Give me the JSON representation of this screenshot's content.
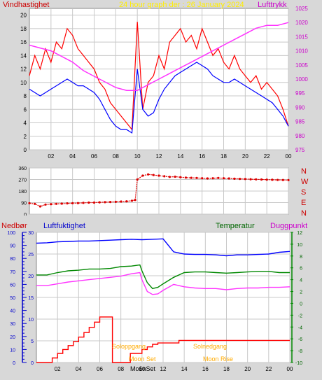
{
  "header": {
    "left_label": "Vindhastighet",
    "title": "24 hour graph der : 26 January 2024",
    "right_label": "Lufttrykk"
  },
  "colors": {
    "panel_bg": "#d8d8d8",
    "plot_bg": "#ffffff",
    "grid": "#c8c8c8",
    "speed": "#ff0000",
    "avg_speed": "#0000ff",
    "pressure": "#ff33ff",
    "direction": "#dd0000",
    "humidity": "#0000ff",
    "temperature": "#008800",
    "dewpoint": "#ff33ff",
    "rain": "#ff0000",
    "title": "#ffee00",
    "sun": "#ffaa00",
    "green_axis": "#008800"
  },
  "bottom_labels": {
    "rain": "Nedbør",
    "humidity": "Luftfuktighet",
    "temperature": "Temperatur",
    "dewpoint": "Duggpunkt",
    "sunrise": "Soloppgang",
    "sunset": "Solnedgang",
    "moonset": "Moon Set",
    "moonrise": "Moon Rise",
    "sunrise_axis": "Mo6nSet"
  },
  "chart_data": [
    {
      "type": "line",
      "title": "24 hour graph der : 26 January 2024",
      "ylabel_left": "Vindhastighet",
      "ylabel_right": "Lufttrykk",
      "xlim": [
        0,
        24
      ],
      "x_ticks": [
        "02",
        "04",
        "06",
        "08",
        "10",
        "12",
        "14",
        "16",
        "18",
        "20",
        "22",
        "00"
      ],
      "ylim_left": [
        0,
        21
      ],
      "y_ticks_left": [
        "0",
        "2",
        "4",
        "6",
        "8",
        "10",
        "12",
        "14",
        "16",
        "18",
        "20"
      ],
      "ylim_right": [
        975,
        1025
      ],
      "y_ticks_right": [
        "975",
        "980",
        "985",
        "990",
        "995",
        "1000",
        "1005",
        "1010",
        "1015",
        "1020",
        "1025"
      ],
      "grid": true,
      "series": [
        {
          "name": "Vindhastighet",
          "axis": "left",
          "x": [
            0,
            0.5,
            1,
            1.5,
            2,
            2.5,
            3,
            3.5,
            4,
            4.5,
            5,
            5.5,
            6,
            6.5,
            7,
            7.5,
            8,
            8.5,
            9,
            9.5,
            10,
            10.5,
            11,
            11.5,
            12,
            12.5,
            13,
            13.5,
            14,
            14.5,
            15,
            15.5,
            16,
            16.5,
            17,
            17.5,
            18,
            18.5,
            19,
            19.5,
            20,
            20.5,
            21,
            21.5,
            22,
            22.5,
            23,
            23.5,
            24
          ],
          "y": [
            11,
            14,
            12,
            15,
            13,
            16,
            15,
            18,
            17,
            15,
            14,
            13,
            12,
            10,
            9,
            7,
            6,
            5,
            4,
            3,
            19,
            6,
            10,
            11,
            14,
            12,
            16,
            17,
            18,
            16,
            17,
            15,
            18,
            16,
            14,
            15,
            13,
            12,
            14,
            12,
            11,
            10,
            11,
            9,
            10,
            9,
            8,
            6,
            3.5
          ]
        },
        {
          "name": "Middelvind",
          "axis": "left",
          "x": [
            0,
            0.5,
            1,
            1.5,
            2,
            2.5,
            3,
            3.5,
            4,
            4.5,
            5,
            5.5,
            6,
            6.5,
            7,
            7.5,
            8,
            8.5,
            9,
            9.5,
            10,
            10.5,
            11,
            11.5,
            12,
            12.5,
            13,
            13.5,
            14,
            14.5,
            15,
            15.5,
            16,
            16.5,
            17,
            17.5,
            18,
            18.5,
            19,
            19.5,
            20,
            20.5,
            21,
            21.5,
            22,
            22.5,
            23,
            23.5,
            24
          ],
          "y": [
            9,
            8.5,
            8,
            8.5,
            9,
            9.5,
            10,
            10.5,
            10,
            9.5,
            9.5,
            9,
            8.5,
            7.5,
            6,
            4.5,
            3.5,
            3,
            3,
            2.5,
            12,
            6,
            5,
            5.5,
            7.5,
            9,
            10,
            11,
            11.5,
            12,
            12.5,
            13,
            12.5,
            12,
            11,
            10.5,
            10,
            10,
            10.5,
            10,
            9.5,
            9,
            8.5,
            8,
            7.5,
            7,
            6,
            5,
            3.5
          ]
        },
        {
          "name": "Lufttrykk",
          "axis": "right",
          "x": [
            0,
            1,
            2,
            3,
            4,
            5,
            6,
            7,
            8,
            9,
            10,
            11,
            12,
            13,
            14,
            15,
            16,
            17,
            18,
            19,
            20,
            21,
            22,
            23,
            24
          ],
          "y": [
            1012,
            1011,
            1010,
            1008,
            1006,
            1003,
            1001,
            999,
            997,
            996,
            996,
            998,
            1000,
            1002,
            1004,
            1006,
            1008,
            1010,
            1012,
            1014,
            1016,
            1018,
            1019,
            1019,
            1020
          ]
        }
      ]
    },
    {
      "type": "scatter",
      "xlim": [
        0,
        24
      ],
      "x_ticks": [
        "02",
        "04",
        "06",
        "08",
        "10",
        "12",
        "14",
        "16",
        "18",
        "20",
        "22",
        "00"
      ],
      "ylim": [
        0,
        360
      ],
      "y_ticks": [
        "0",
        "90",
        "180",
        "270",
        "360"
      ],
      "right_labels": [
        "N",
        "W",
        "S",
        "E",
        "N"
      ],
      "series": [
        {
          "name": "Vindretning",
          "x": [
            0,
            0.5,
            1,
            1.5,
            2,
            2.5,
            3,
            3.5,
            4,
            4.5,
            5,
            5.5,
            6,
            6.5,
            7,
            7.5,
            8,
            8.5,
            9,
            9.5,
            9.8,
            10,
            10.5,
            11,
            11.5,
            12,
            12.5,
            13,
            13.5,
            14,
            14.5,
            15,
            15.5,
            16,
            16.5,
            17,
            17.5,
            18,
            18.5,
            19,
            19.5,
            20,
            20.5,
            21,
            21.5,
            22,
            22.5,
            23,
            23.5,
            24
          ],
          "y": [
            85,
            80,
            60,
            75,
            78,
            80,
            82,
            84,
            85,
            86,
            88,
            90,
            90,
            92,
            93,
            95,
            96,
            98,
            100,
            105,
            110,
            270,
            300,
            310,
            305,
            300,
            295,
            290,
            292,
            288,
            285,
            283,
            282,
            280,
            278,
            280,
            282,
            280,
            278,
            276,
            275,
            274,
            272,
            271,
            270,
            269,
            268,
            267,
            266,
            265
          ]
        }
      ]
    },
    {
      "type": "line",
      "xlim": [
        0,
        24
      ],
      "x_ticks": [
        "02",
        "04",
        "06",
        "08",
        "10",
        "12",
        "14",
        "16",
        "18",
        "20",
        "22",
        "00"
      ],
      "rain_ylim": [
        0,
        100
      ],
      "rain_ticks": [
        "0",
        "10",
        "20",
        "30",
        "40",
        "50",
        "60",
        "70",
        "80",
        "90",
        "100"
      ],
      "humidity_ylim": [
        0,
        30
      ],
      "humidity_ticks": [
        "0",
        "5",
        "10",
        "15",
        "20",
        "25",
        "30"
      ],
      "temp_ylim": [
        -10,
        12
      ],
      "temp_ticks": [
        "-10",
        "-8",
        "-6",
        "-4",
        "-2",
        "0",
        "2",
        "4",
        "6",
        "8",
        "10",
        "12"
      ],
      "series": [
        {
          "name": "Luftfuktighet",
          "axis": "humidity",
          "x": [
            0,
            1,
            2,
            3,
            4,
            5,
            6,
            7,
            8,
            9,
            10,
            11,
            12,
            12.5,
            13,
            14,
            15,
            16,
            17,
            18,
            19,
            20,
            21,
            22,
            23,
            24
          ],
          "y": [
            27.5,
            27.6,
            27.8,
            27.9,
            28,
            28,
            28.1,
            28.2,
            28.3,
            28.4,
            28.3,
            28.4,
            28.5,
            27,
            25.5,
            25,
            24.9,
            24.9,
            24.8,
            24.6,
            24.8,
            24.8,
            24.9,
            25,
            25.4,
            25.6
          ]
        },
        {
          "name": "Temperatur",
          "axis": "temp",
          "x": [
            0,
            1,
            2,
            3,
            4,
            5,
            6,
            7,
            8,
            9,
            9.8,
            10,
            10.5,
            11,
            11.5,
            12,
            13,
            14,
            15,
            16,
            17,
            18,
            19,
            20,
            21,
            22,
            23,
            24
          ],
          "y": [
            4.8,
            4.8,
            5.2,
            5.5,
            5.6,
            5.8,
            5.8,
            5.9,
            6.2,
            6.3,
            6.5,
            5.5,
            3.5,
            2.5,
            2.7,
            3.3,
            4.4,
            5.2,
            5.3,
            5.3,
            5.2,
            5.1,
            5.2,
            5.3,
            5.4,
            5.4,
            5.2,
            5.2
          ]
        },
        {
          "name": "Duggpunkt",
          "axis": "temp",
          "x": [
            0,
            1,
            2,
            3,
            4,
            5,
            6,
            7,
            8,
            9,
            9.8,
            10,
            10.5,
            11,
            11.5,
            12,
            13,
            14,
            15,
            16,
            17,
            18,
            19,
            20,
            21,
            22,
            23,
            24
          ],
          "y": [
            3,
            3,
            3.3,
            3.6,
            3.8,
            4,
            4.2,
            4.4,
            4.6,
            5,
            5.2,
            4,
            2,
            1.5,
            1.6,
            2.2,
            3.2,
            2.8,
            2.6,
            2.5,
            2.5,
            2.3,
            2.5,
            2.6,
            2.6,
            2.7,
            2.7,
            2.8
          ]
        },
        {
          "name": "Nedbør",
          "axis": "rain",
          "x": [
            0,
            1.5,
            1.5,
            2,
            2,
            2.5,
            2.5,
            3,
            3,
            3.5,
            3.5,
            4,
            4,
            4.5,
            4.5,
            5,
            5,
            5.5,
            5.5,
            6,
            6,
            7.2,
            7.2,
            8.9,
            8.9,
            10,
            10,
            10.5,
            10.5,
            11,
            11,
            11.5,
            11.5,
            13.5,
            13.5,
            24
          ],
          "y": [
            0,
            0,
            3.5,
            3.5,
            7,
            7,
            10,
            10,
            13,
            13,
            16,
            16,
            19.5,
            19.5,
            23,
            23,
            27,
            27,
            31,
            31,
            35,
            35,
            0,
            0,
            7,
            7,
            10,
            10,
            12,
            12,
            14,
            14,
            15,
            15,
            17,
            17
          ]
        }
      ]
    }
  ]
}
